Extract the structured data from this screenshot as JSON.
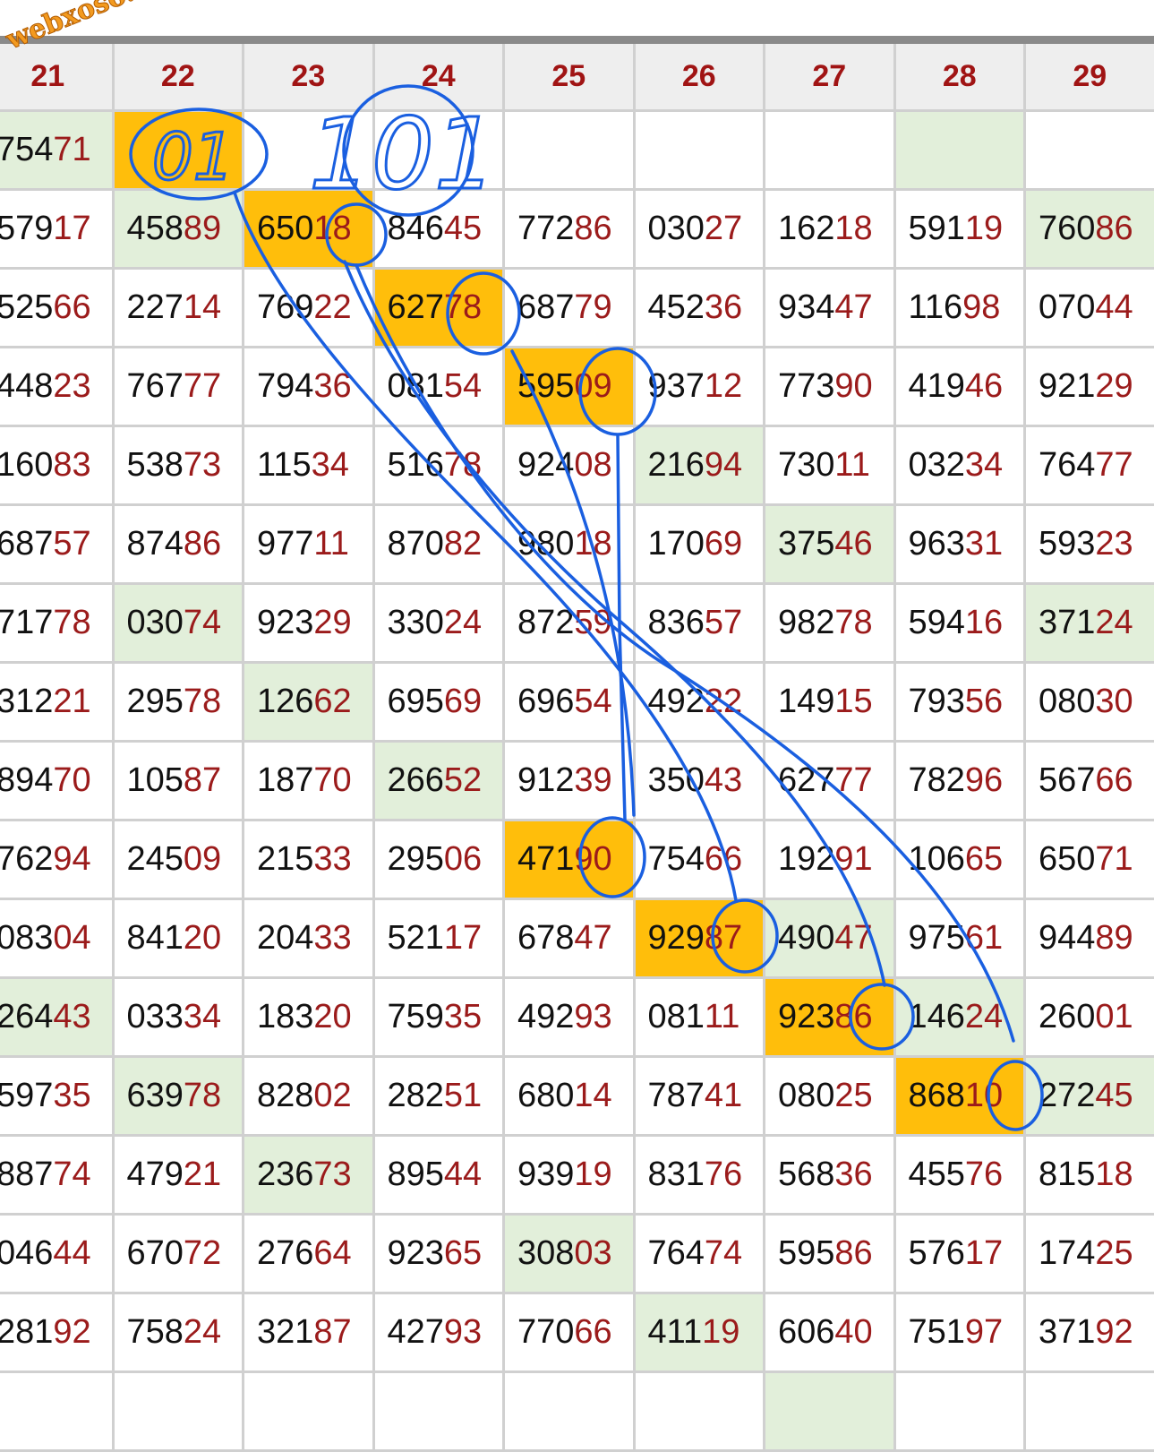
{
  "watermark": "webxoso.net",
  "colors": {
    "highlight_orange": "#ffbe0b",
    "highlight_green": "#e2efda",
    "header_text": "#a01414",
    "tail_digits": "#9b1b1b",
    "annotation_ink": "#1a5fe0"
  },
  "columns": [
    "21",
    "22",
    "23",
    "24",
    "25",
    "26",
    "27",
    "28",
    "29"
  ],
  "rows": [
    {
      "cells": [
        "75471",
        "",
        "",
        "",
        "",
        "",
        "",
        "",
        ""
      ],
      "hl": [
        "g",
        "o",
        "",
        "",
        "",
        "",
        "",
        "g",
        ""
      ]
    },
    {
      "cells": [
        "57917",
        "45889",
        "65018",
        "84645",
        "77286",
        "03027",
        "16218",
        "59119",
        "76086"
      ],
      "hl": [
        "",
        "g",
        "o",
        "",
        "",
        "",
        "",
        "",
        "g"
      ]
    },
    {
      "cells": [
        "52566",
        "22714",
        "76922",
        "62778",
        "68779",
        "45236",
        "93447",
        "11698",
        "07044"
      ],
      "hl": [
        "",
        "",
        "",
        "o",
        "",
        "",
        "",
        "",
        ""
      ]
    },
    {
      "cells": [
        "44823",
        "76777",
        "79436",
        "08154",
        "59509",
        "93712",
        "77390",
        "41946",
        "92129"
      ],
      "hl": [
        "",
        "",
        "",
        "",
        "o",
        "",
        "",
        "",
        ""
      ]
    },
    {
      "cells": [
        "16083",
        "53873",
        "11534",
        "51678",
        "92408",
        "21694",
        "73011",
        "03234",
        "76477"
      ],
      "hl": [
        "",
        "",
        "",
        "",
        "",
        "g",
        "",
        "",
        ""
      ]
    },
    {
      "cells": [
        "68757",
        "87486",
        "97711",
        "87082",
        "98018",
        "17069",
        "37546",
        "96331",
        "59323"
      ],
      "hl": [
        "",
        "",
        "",
        "",
        "",
        "",
        "g",
        "",
        ""
      ]
    },
    {
      "cells": [
        "71778",
        "03074",
        "92329",
        "33024",
        "87259",
        "83657",
        "98278",
        "59416",
        "37124"
      ],
      "hl": [
        "",
        "g",
        "",
        "",
        "",
        "",
        "",
        "",
        "g"
      ]
    },
    {
      "cells": [
        "31221",
        "29578",
        "12662",
        "69569",
        "69654",
        "49222",
        "14915",
        "79356",
        "08030"
      ],
      "hl": [
        "",
        "",
        "g",
        "",
        "",
        "",
        "",
        "",
        ""
      ]
    },
    {
      "cells": [
        "89470",
        "10587",
        "18770",
        "26652",
        "91239",
        "35043",
        "62777",
        "78296",
        "56766"
      ],
      "hl": [
        "",
        "",
        "",
        "g",
        "",
        "",
        "",
        "",
        ""
      ]
    },
    {
      "cells": [
        "76294",
        "24509",
        "21533",
        "29506",
        "47190",
        "75466",
        "19291",
        "10665",
        "65071"
      ],
      "hl": [
        "",
        "",
        "",
        "",
        "o",
        "",
        "",
        "",
        ""
      ]
    },
    {
      "cells": [
        "08304",
        "84120",
        "20433",
        "52117",
        "67847",
        "92987",
        "49047",
        "97561",
        "94489"
      ],
      "hl": [
        "",
        "",
        "",
        "",
        "",
        "o",
        "g",
        "",
        ""
      ]
    },
    {
      "cells": [
        "26443",
        "03334",
        "18320",
        "75935",
        "49293",
        "08111",
        "92386",
        "14624",
        "26001"
      ],
      "hl": [
        "g",
        "",
        "",
        "",
        "",
        "",
        "o",
        "g",
        ""
      ]
    },
    {
      "cells": [
        "59735",
        "63978",
        "82802",
        "28251",
        "68014",
        "78741",
        "08025",
        "86810",
        "27245"
      ],
      "hl": [
        "",
        "g",
        "",
        "",
        "",
        "",
        "",
        "o",
        "g"
      ]
    },
    {
      "cells": [
        "88774",
        "47921",
        "23673",
        "89544",
        "93919",
        "83176",
        "56836",
        "45576",
        "81518"
      ],
      "hl": [
        "",
        "",
        "g",
        "",
        "",
        "",
        "",
        "",
        ""
      ]
    },
    {
      "cells": [
        "04644",
        "67072",
        "27664",
        "92365",
        "30803",
        "76474",
        "59586",
        "57617",
        "17425"
      ],
      "hl": [
        "",
        "",
        "",
        "",
        "g",
        "",
        "",
        "",
        ""
      ]
    },
    {
      "cells": [
        "28192",
        "75824",
        "32187",
        "42793",
        "77066",
        "41119",
        "60640",
        "75197",
        "37192"
      ],
      "hl": [
        "",
        "",
        "",
        "",
        "",
        "g",
        "",
        "",
        ""
      ]
    },
    {
      "cells": [
        "",
        "",
        "",
        "",
        "",
        "",
        "",
        "",
        ""
      ],
      "hl": [
        "",
        "",
        "",
        "",
        "",
        "",
        "g",
        "",
        ""
      ]
    }
  ],
  "annotations": {
    "handwritten": [
      "01",
      "101"
    ]
  }
}
